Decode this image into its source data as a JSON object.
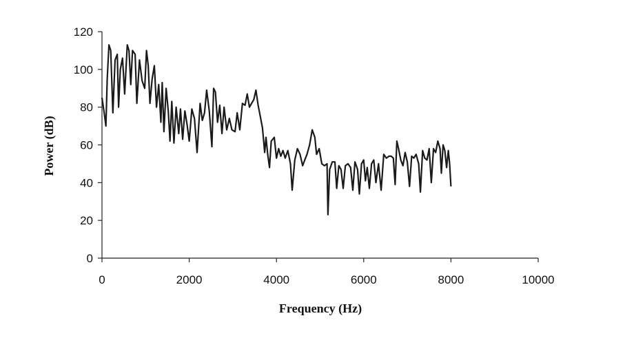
{
  "chart_data": {
    "type": "line",
    "title": "",
    "xlabel": "Frequency (Hz)",
    "ylabel": "Power (dB)",
    "xlim": [
      0,
      10000
    ],
    "ylim": [
      0,
      120
    ],
    "x_ticks": [
      0,
      2000,
      4000,
      6000,
      8000,
      10000
    ],
    "y_ticks": [
      0,
      20,
      40,
      60,
      80,
      100,
      120
    ],
    "grid": false,
    "legend": "none",
    "series": [
      {
        "color": "#1a1a1a",
        "points": [
          [
            0,
            85
          ],
          [
            50,
            77
          ],
          [
            90,
            70
          ],
          [
            120,
            95
          ],
          [
            160,
            113
          ],
          [
            200,
            110
          ],
          [
            250,
            77
          ],
          [
            300,
            105
          ],
          [
            350,
            108
          ],
          [
            380,
            80
          ],
          [
            420,
            100
          ],
          [
            470,
            106
          ],
          [
            520,
            87
          ],
          [
            580,
            113
          ],
          [
            620,
            110
          ],
          [
            660,
            92
          ],
          [
            700,
            110
          ],
          [
            760,
            108
          ],
          [
            800,
            82
          ],
          [
            860,
            105
          ],
          [
            920,
            94
          ],
          [
            980,
            90
          ],
          [
            1020,
            110
          ],
          [
            1060,
            102
          ],
          [
            1100,
            82
          ],
          [
            1150,
            95
          ],
          [
            1200,
            102
          ],
          [
            1250,
            80
          ],
          [
            1300,
            92
          ],
          [
            1350,
            72
          ],
          [
            1380,
            93
          ],
          [
            1420,
            67
          ],
          [
            1470,
            90
          ],
          [
            1520,
            78
          ],
          [
            1560,
            62
          ],
          [
            1600,
            83
          ],
          [
            1650,
            61
          ],
          [
            1700,
            80
          ],
          [
            1760,
            66
          ],
          [
            1800,
            79
          ],
          [
            1850,
            63
          ],
          [
            1900,
            78
          ],
          [
            1950,
            71
          ],
          [
            2000,
            62
          ],
          [
            2060,
            79
          ],
          [
            2120,
            74
          ],
          [
            2180,
            56
          ],
          [
            2250,
            82
          ],
          [
            2300,
            73
          ],
          [
            2350,
            77
          ],
          [
            2400,
            89
          ],
          [
            2460,
            78
          ],
          [
            2520,
            59
          ],
          [
            2560,
            90
          ],
          [
            2600,
            88
          ],
          [
            2650,
            72
          ],
          [
            2700,
            81
          ],
          [
            2750,
            66
          ],
          [
            2800,
            80
          ],
          [
            2860,
            68
          ],
          [
            2920,
            74
          ],
          [
            2980,
            68
          ],
          [
            3050,
            67
          ],
          [
            3100,
            77
          ],
          [
            3160,
            68
          ],
          [
            3220,
            82
          ],
          [
            3280,
            81
          ],
          [
            3330,
            87
          ],
          [
            3380,
            80
          ],
          [
            3430,
            82
          ],
          [
            3480,
            84
          ],
          [
            3530,
            89
          ],
          [
            3580,
            81
          ],
          [
            3630,
            75
          ],
          [
            3680,
            69
          ],
          [
            3730,
            56
          ],
          [
            3760,
            64
          ],
          [
            3800,
            55
          ],
          [
            3840,
            48
          ],
          [
            3880,
            62
          ],
          [
            3950,
            64
          ],
          [
            4000,
            53
          ],
          [
            4050,
            58
          ],
          [
            4100,
            54
          ],
          [
            4150,
            57
          ],
          [
            4200,
            53
          ],
          [
            4260,
            57
          ],
          [
            4320,
            50
          ],
          [
            4360,
            36
          ],
          [
            4420,
            52
          ],
          [
            4480,
            58
          ],
          [
            4540,
            55
          ],
          [
            4600,
            49
          ],
          [
            4650,
            52
          ],
          [
            4700,
            55
          ],
          [
            4760,
            60
          ],
          [
            4820,
            68
          ],
          [
            4880,
            64
          ],
          [
            4920,
            55
          ],
          [
            4980,
            58
          ],
          [
            5040,
            50
          ],
          [
            5100,
            49
          ],
          [
            5160,
            50
          ],
          [
            5180,
            23
          ],
          [
            5220,
            47
          ],
          [
            5280,
            51
          ],
          [
            5340,
            51
          ],
          [
            5380,
            37
          ],
          [
            5430,
            49
          ],
          [
            5480,
            47
          ],
          [
            5530,
            37
          ],
          [
            5580,
            49
          ],
          [
            5640,
            50
          ],
          [
            5700,
            48
          ],
          [
            5750,
            36
          ],
          [
            5800,
            51
          ],
          [
            5860,
            47
          ],
          [
            5900,
            34
          ],
          [
            5950,
            50
          ],
          [
            6000,
            52
          ],
          [
            6040,
            41
          ],
          [
            6080,
            48
          ],
          [
            6130,
            37
          ],
          [
            6180,
            50
          ],
          [
            6230,
            52
          ],
          [
            6280,
            40
          ],
          [
            6340,
            50
          ],
          [
            6400,
            36
          ],
          [
            6460,
            55
          ],
          [
            6520,
            53
          ],
          [
            6580,
            54
          ],
          [
            6630,
            54
          ],
          [
            6680,
            53
          ],
          [
            6720,
            39
          ],
          [
            6760,
            62
          ],
          [
            6800,
            58
          ],
          [
            6850,
            52
          ],
          [
            6900,
            49
          ],
          [
            6950,
            56
          ],
          [
            7000,
            51
          ],
          [
            7050,
            38
          ],
          [
            7100,
            54
          ],
          [
            7150,
            53
          ],
          [
            7200,
            55
          ],
          [
            7260,
            50
          ],
          [
            7300,
            35
          ],
          [
            7350,
            57
          ],
          [
            7400,
            53
          ],
          [
            7450,
            52
          ],
          [
            7500,
            58
          ],
          [
            7550,
            40
          ],
          [
            7600,
            58
          ],
          [
            7650,
            56
          ],
          [
            7700,
            62
          ],
          [
            7750,
            58
          ],
          [
            7780,
            45
          ],
          [
            7820,
            60
          ],
          [
            7860,
            57
          ],
          [
            7900,
            48
          ],
          [
            7940,
            57
          ],
          [
            7970,
            50
          ],
          [
            8000,
            38
          ]
        ]
      }
    ]
  }
}
